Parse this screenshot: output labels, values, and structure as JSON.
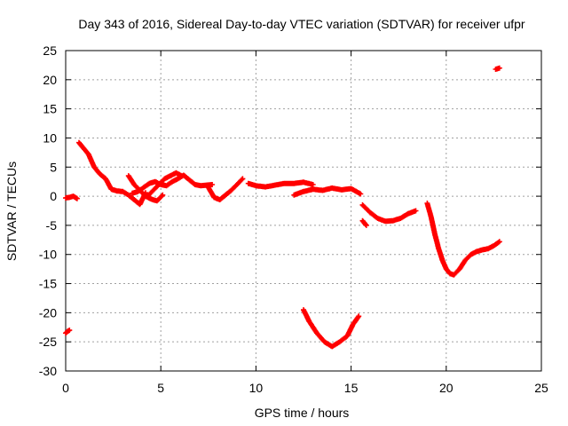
{
  "chart_data": {
    "type": "scatter",
    "title": "Day 343 of 2016, Sidereal Day-to-day VTEC variation (SDTVAR) for receiver ufpr",
    "xlabel": "GPS time / hours",
    "ylabel": "SDTVAR / TECUs",
    "xlim": [
      0,
      25
    ],
    "ylim": [
      -30,
      25
    ],
    "xticks": [
      0,
      5,
      10,
      15,
      20,
      25
    ],
    "yticks": [
      -30,
      -25,
      -20,
      -15,
      -10,
      -5,
      0,
      5,
      10,
      15,
      20,
      25
    ],
    "grid": true,
    "marker": "plus",
    "series": [
      {
        "name": "SDTVAR",
        "color": "#ff0000",
        "segments": [
          {
            "x": [
              0.0,
              0.1,
              0.2
            ],
            "y": [
              -23.5,
              -23.2,
              -23.0
            ]
          },
          {
            "x": [
              0.0,
              0.2,
              0.4,
              0.6
            ],
            "y": [
              -0.3,
              -0.2,
              0.0,
              -0.4
            ]
          },
          {
            "x": [
              0.7,
              0.9,
              1.2,
              1.5,
              1.8,
              2.1,
              2.4,
              2.7,
              3.0,
              3.3,
              3.6,
              3.9,
              4.2
            ],
            "y": [
              9.2,
              8.4,
              7.2,
              5.0,
              3.8,
              3.0,
              1.2,
              0.9,
              0.8,
              0.2,
              -0.6,
              -1.4,
              0.6
            ]
          },
          {
            "x": [
              3.3,
              3.6,
              3.9,
              4.2,
              4.5,
              4.8,
              5.1
            ],
            "y": [
              3.5,
              2.0,
              1.0,
              0.0,
              -0.5,
              -0.8,
              0.2
            ]
          },
          {
            "x": [
              3.5,
              3.8,
              4.1,
              4.4,
              4.7,
              5.0,
              5.3,
              5.6,
              5.9,
              6.2,
              6.5,
              6.8,
              7.1,
              7.4,
              7.7
            ],
            "y": [
              0.5,
              0.8,
              1.5,
              2.2,
              2.5,
              2.0,
              1.8,
              2.5,
              3.0,
              3.6,
              2.8,
              2.0,
              1.8,
              1.9,
              2.0
            ]
          },
          {
            "x": [
              4.3,
              4.6,
              4.9,
              5.2,
              5.5,
              5.8,
              6.1
            ],
            "y": [
              0.0,
              1.0,
              2.0,
              3.0,
              3.5,
              4.0,
              3.5
            ]
          },
          {
            "x": [
              7.5,
              7.8,
              8.1,
              8.4,
              8.7,
              9.0,
              9.3
            ],
            "y": [
              1.5,
              -0.2,
              -0.6,
              0.2,
              1.0,
              2.0,
              3.0
            ]
          },
          {
            "x": [
              9.6,
              10.0,
              10.5,
              11.0,
              11.5,
              12.0,
              12.5,
              13.0
            ],
            "y": [
              2.2,
              1.8,
              1.6,
              1.9,
              2.2,
              2.2,
              2.4,
              2.0
            ]
          },
          {
            "x": [
              12.0,
              12.5,
              13.0,
              13.5,
              14.0,
              14.5,
              15.0,
              15.5
            ],
            "y": [
              0.2,
              0.8,
              1.2,
              1.0,
              1.4,
              1.1,
              1.3,
              0.4
            ]
          },
          {
            "x": [
              12.5,
              12.8,
              13.2,
              13.6,
              14.0,
              14.4,
              14.8,
              15.1,
              15.4
            ],
            "y": [
              -19.5,
              -21.5,
              -23.5,
              -25.0,
              -25.8,
              -25.0,
              -24.0,
              -22.0,
              -20.6
            ]
          },
          {
            "x": [
              15.6,
              15.8
            ],
            "y": [
              -4.2,
              -5.0
            ]
          },
          {
            "x": [
              15.6,
              16.0,
              16.4,
              16.8,
              17.2,
              17.6,
              18.0,
              18.4
            ],
            "y": [
              -1.5,
              -2.8,
              -3.8,
              -4.3,
              -4.2,
              -3.8,
              -3.0,
              -2.5
            ]
          },
          {
            "x": [
              19.0,
              19.2,
              19.4,
              19.6,
              19.8,
              20.0,
              20.2,
              20.4
            ],
            "y": [
              -1.2,
              -3.5,
              -6.5,
              -9.0,
              -11.0,
              -12.5,
              -13.3,
              -13.5
            ]
          },
          {
            "x": [
              20.4,
              20.7,
              21.0,
              21.3,
              21.6,
              21.9,
              22.2,
              22.5,
              22.8
            ],
            "y": [
              -13.5,
              -12.5,
              -11.0,
              -10.0,
              -9.5,
              -9.2,
              -9.0,
              -8.5,
              -7.8
            ]
          },
          {
            "x": [
              22.6,
              22.8
            ],
            "y": [
              21.8,
              22.0
            ]
          }
        ]
      }
    ]
  }
}
